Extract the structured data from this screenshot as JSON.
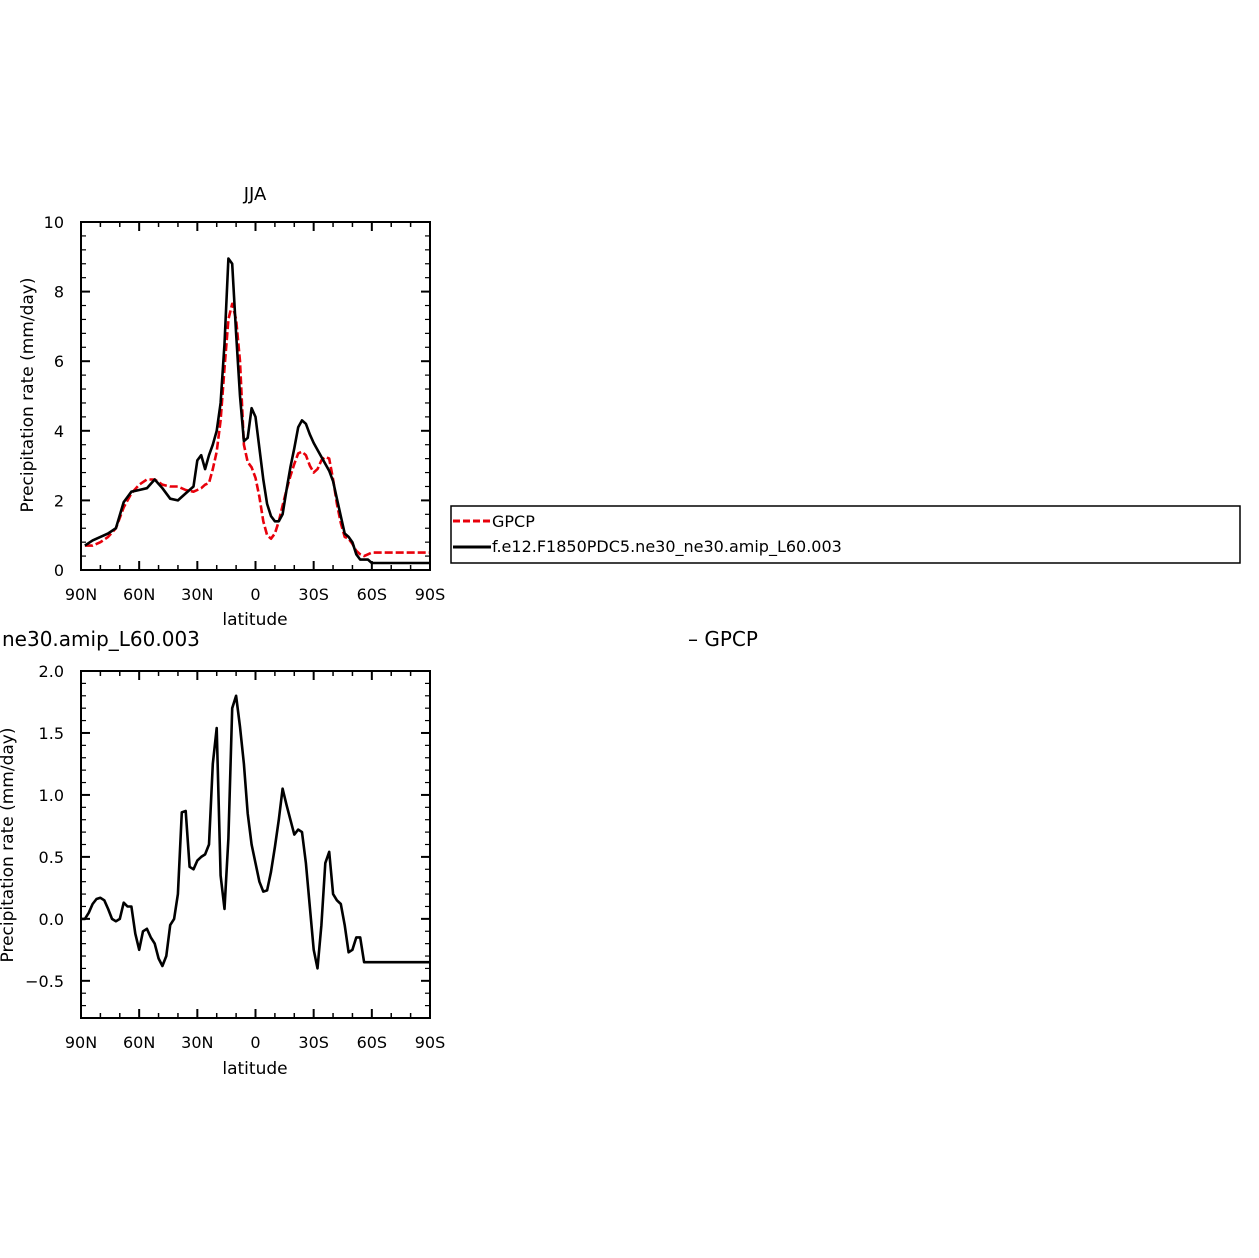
{
  "chart_data": [
    {
      "type": "line",
      "title": "JJA",
      "xlabel": "latitude",
      "ylabel": "Precipitation rate (mm/day)",
      "xlim": [
        90,
        -90
      ],
      "ylim": [
        0,
        10
      ],
      "yticks": [
        "0",
        "2",
        "4",
        "6",
        "8",
        "10"
      ],
      "xticks": [
        "90N",
        "60N",
        "30N",
        "0",
        "30S",
        "60S",
        "90S"
      ],
      "grid": false,
      "legend": "right, outside",
      "x": [
        88,
        84,
        80,
        76,
        72,
        68,
        64,
        60,
        56,
        52,
        48,
        44,
        40,
        36,
        32,
        30,
        28,
        26,
        24,
        22,
        20,
        18,
        16,
        14,
        12,
        10,
        8,
        6,
        4,
        2,
        0,
        -2,
        -4,
        -6,
        -8,
        -10,
        -12,
        -14,
        -16,
        -18,
        -20,
        -22,
        -24,
        -26,
        -28,
        -30,
        -32,
        -34,
        -36,
        -38,
        -40,
        -42,
        -44,
        -46,
        -48,
        -50,
        -52,
        -54,
        -56,
        -58,
        -60,
        -64,
        -68,
        -72,
        -76,
        -80,
        -84,
        -88,
        -90
      ],
      "series": [
        {
          "name": "GPCP",
          "color": "#e8000b",
          "style": "dashed",
          "values": [
            0.7,
            0.7,
            0.8,
            0.95,
            1.2,
            1.8,
            2.2,
            2.45,
            2.6,
            2.6,
            2.45,
            2.4,
            2.4,
            2.3,
            2.25,
            2.3,
            2.35,
            2.45,
            2.5,
            2.9,
            3.4,
            4.3,
            5.8,
            7.2,
            7.65,
            7.2,
            6.0,
            3.6,
            3.1,
            2.95,
            2.65,
            2.1,
            1.4,
            1.0,
            0.9,
            1.05,
            1.4,
            1.85,
            2.3,
            2.7,
            3.05,
            3.35,
            3.4,
            3.3,
            3.0,
            2.8,
            2.9,
            3.15,
            3.25,
            3.2,
            2.6,
            1.9,
            1.35,
            0.95,
            0.9,
            0.75,
            0.55,
            0.45,
            0.4,
            0.45,
            0.5,
            0.5,
            0.5,
            0.5,
            0.5,
            0.5,
            0.5,
            0.5,
            0.5
          ]
        },
        {
          "name": "f.e12.F1850PDC5.ne30_ne30.amip_L60.003",
          "color": "#000000",
          "style": "solid",
          "values": [
            0.7,
            0.85,
            0.95,
            1.05,
            1.2,
            1.95,
            2.25,
            2.3,
            2.35,
            2.6,
            2.35,
            2.05,
            2.0,
            2.2,
            2.4,
            3.15,
            3.3,
            2.9,
            3.3,
            3.6,
            4.0,
            4.8,
            6.5,
            8.95,
            8.8,
            6.8,
            5.0,
            3.7,
            3.8,
            4.65,
            4.4,
            3.5,
            2.6,
            1.9,
            1.55,
            1.4,
            1.4,
            1.6,
            2.3,
            2.95,
            3.5,
            4.1,
            4.3,
            4.2,
            3.9,
            3.65,
            3.45,
            3.25,
            3.05,
            2.85,
            2.55,
            2.05,
            1.55,
            1.05,
            0.95,
            0.8,
            0.45,
            0.3,
            0.3,
            0.3,
            0.2,
            0.2,
            0.2,
            0.2,
            0.2,
            0.2,
            0.2,
            0.2,
            0.2
          ]
        }
      ]
    },
    {
      "type": "line",
      "title": "",
      "xlabel": "latitude",
      "ylabel": "",
      "xlim": [
        90,
        -90
      ],
      "ylim": [
        -0.8,
        2.0
      ],
      "yticks": [
        "−0.5",
        "0.0",
        "0.5",
        "1.0",
        "1.5",
        "2.0"
      ],
      "xticks": [
        "90N",
        "60N",
        "30N",
        "0",
        "30S",
        "60S",
        "90S"
      ],
      "grid": false,
      "x": [
        90,
        88,
        86,
        84,
        82,
        80,
        78,
        76,
        74,
        72,
        70,
        68,
        66,
        64,
        62,
        60,
        58,
        56,
        54,
        52,
        50,
        48,
        46,
        44,
        42,
        40,
        38,
        36,
        34,
        32,
        30,
        28,
        26,
        24,
        22,
        20,
        18,
        16,
        14,
        12,
        10,
        8,
        6,
        4,
        2,
        0,
        -2,
        -4,
        -6,
        -8,
        -10,
        -12,
        -14,
        -16,
        -18,
        -20,
        -22,
        -24,
        -26,
        -28,
        -30,
        -32,
        -34,
        -36,
        -38,
        -40,
        -42,
        -44,
        -46,
        -48,
        -50,
        -52,
        -54,
        -56,
        -58,
        -60,
        -62,
        -64,
        -66,
        -68,
        -70,
        -72,
        -74,
        -76,
        -78,
        -80,
        -82,
        -84,
        -86,
        -88,
        -90
      ],
      "series": [
        {
          "name": "",
          "color": "#000000",
          "style": "solid",
          "values": [
            0.0,
            0.0,
            0.05,
            0.12,
            0.16,
            0.17,
            0.15,
            0.08,
            0.0,
            -0.02,
            0.0,
            0.13,
            0.1,
            0.1,
            -0.12,
            -0.25,
            -0.1,
            -0.08,
            -0.15,
            -0.2,
            -0.32,
            -0.38,
            -0.3,
            -0.05,
            0.0,
            0.2,
            0.86,
            0.87,
            0.42,
            0.4,
            0.47,
            0.5,
            0.52,
            0.6,
            1.25,
            1.54,
            0.35,
            0.08,
            0.65,
            1.7,
            1.8,
            1.55,
            1.25,
            0.85,
            0.6,
            0.45,
            0.3,
            0.22,
            0.23,
            0.38,
            0.58,
            0.8,
            1.05,
            0.92,
            0.8,
            0.68,
            0.72,
            0.7,
            0.45,
            0.1,
            -0.25,
            -0.4,
            -0.05,
            0.45,
            0.54,
            0.2,
            0.15,
            0.12,
            -0.05,
            -0.27,
            -0.25,
            -0.15,
            -0.15,
            -0.35,
            -0.35,
            -0.35,
            -0.35,
            -0.35,
            -0.35,
            -0.35,
            -0.35,
            -0.35,
            -0.35,
            -0.35,
            -0.35,
            -0.35,
            -0.35,
            -0.35,
            -0.35,
            -0.35,
            -0.35
          ]
        }
      ]
    }
  ],
  "legend_top": [
    {
      "label": "GPCP",
      "color": "#e8000b",
      "style": "dashed"
    },
    {
      "label": "f.e12.F1850PDC5.ne30_ne30.amip_L60.003",
      "color": "#000000",
      "style": "solid"
    }
  ],
  "bottom_panel_clipped_title": "ne30.amip_L60.003",
  "bottom_panel_clipped_ylabel": "Precipitation rate (mm/day)",
  "bottom_panel_side_label": "– GPCP"
}
